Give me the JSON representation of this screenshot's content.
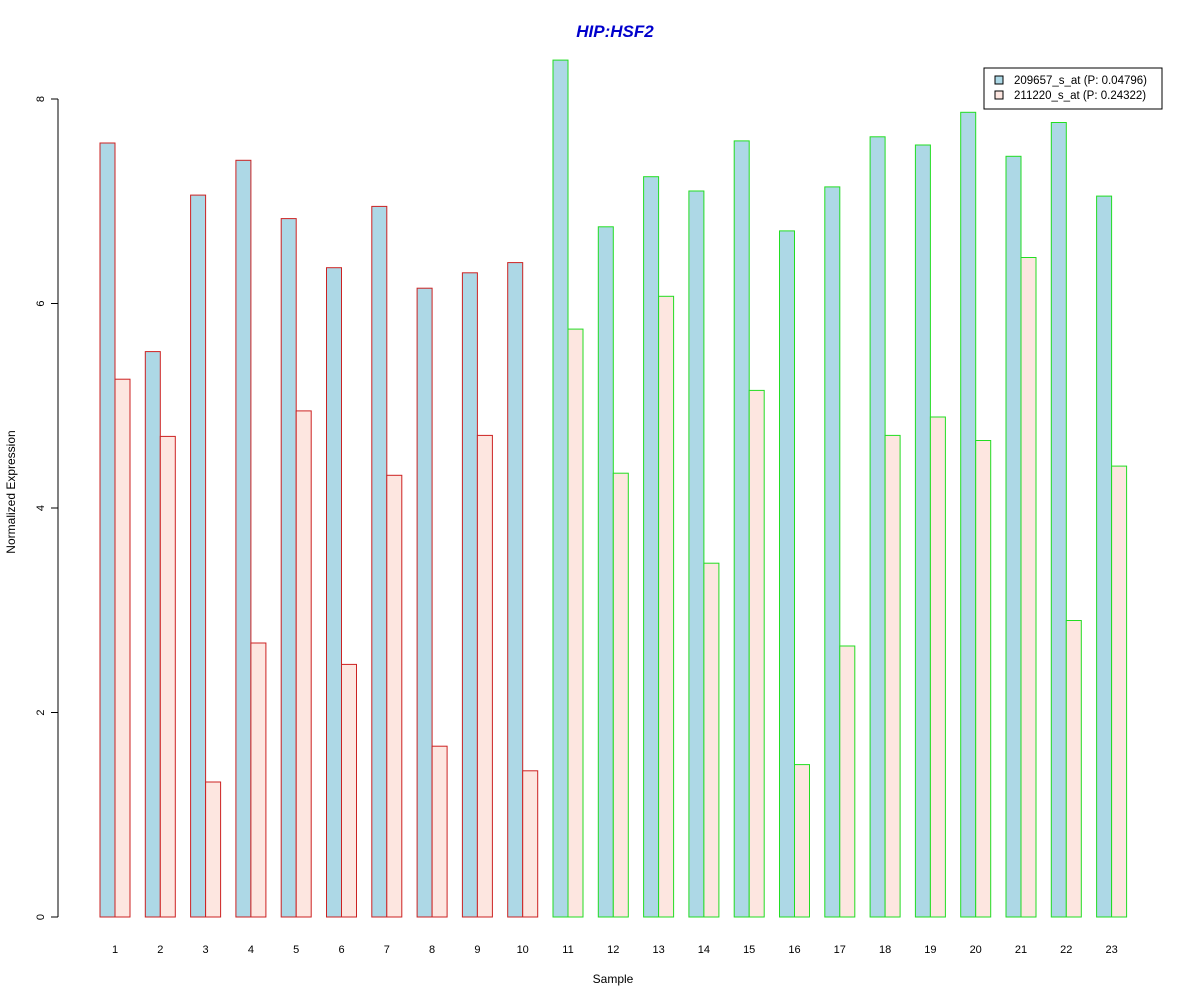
{
  "chart_data": {
    "type": "bar",
    "title": "HIP:HSF2",
    "xlabel": "Sample",
    "ylabel": "Normalized Expression",
    "ylim": [
      0,
      8.4
    ],
    "yticks": [
      0,
      2,
      4,
      6,
      8
    ],
    "categories": [
      "1",
      "2",
      "3",
      "4",
      "5",
      "6",
      "7",
      "8",
      "9",
      "10",
      "11",
      "12",
      "13",
      "14",
      "15",
      "16",
      "17",
      "18",
      "19",
      "20",
      "21",
      "22",
      "23"
    ],
    "series": [
      {
        "name": "209657_s_at (P: 0.04796)",
        "color": "#add8e6",
        "values": [
          7.57,
          5.53,
          7.06,
          7.4,
          6.83,
          6.35,
          6.95,
          6.15,
          6.3,
          6.4,
          8.38,
          6.75,
          7.24,
          7.1,
          7.59,
          6.71,
          7.14,
          7.63,
          7.55,
          7.87,
          7.44,
          7.77,
          7.05
        ]
      },
      {
        "name": "211220_s_at (P: 0.24322)",
        "color": "#fde6e0",
        "values": [
          5.26,
          4.7,
          1.32,
          2.68,
          4.95,
          2.47,
          4.32,
          1.67,
          4.71,
          1.43,
          5.75,
          4.34,
          6.07,
          3.46,
          5.15,
          1.49,
          2.65,
          4.71,
          4.89,
          4.66,
          6.45,
          2.9,
          4.41
        ]
      }
    ],
    "group_border_colors": [
      "#cc2222",
      "#cc2222",
      "#cc2222",
      "#cc2222",
      "#cc2222",
      "#cc2222",
      "#cc2222",
      "#cc2222",
      "#cc2222",
      "#cc2222",
      "#22dd22",
      "#22dd22",
      "#22dd22",
      "#22dd22",
      "#22dd22",
      "#22dd22",
      "#22dd22",
      "#22dd22",
      "#22dd22",
      "#22dd22",
      "#22dd22",
      "#22dd22",
      "#22dd22"
    ],
    "title_color": "#0000cc",
    "legend_position": "top-right",
    "grid": false
  }
}
